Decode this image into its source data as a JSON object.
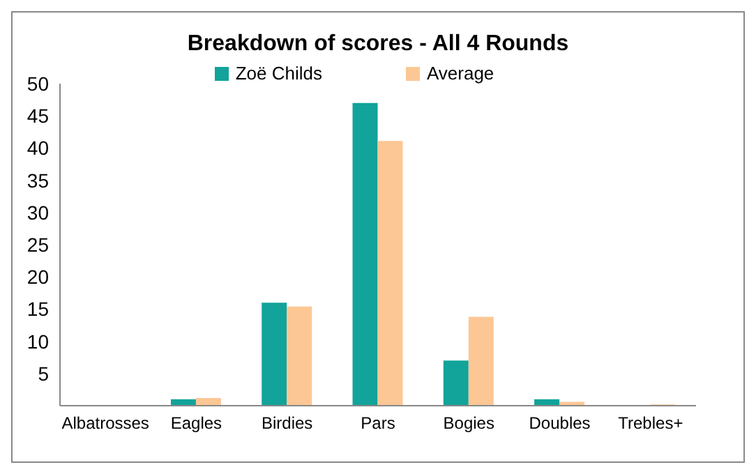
{
  "chart_data": {
    "type": "bar",
    "title": "Breakdown of scores - All 4 Rounds",
    "categories": [
      "Albatrosses",
      "Eagles",
      "Birdies",
      "Pars",
      "Bogies",
      "Doubles",
      "Trebles+"
    ],
    "series": [
      {
        "name": "Zoë Childs",
        "color": "#12a39a",
        "values": [
          0,
          1,
          16,
          47,
          7,
          1,
          0
        ]
      },
      {
        "name": "Average",
        "color": "#fcc795",
        "values": [
          0,
          1.2,
          15.4,
          41.1,
          13.8,
          0.6,
          0.2
        ]
      }
    ],
    "ylim": [
      0,
      50
    ],
    "yticks": [
      5,
      10,
      15,
      20,
      25,
      30,
      35,
      40,
      45,
      50
    ],
    "grid": false,
    "legend": "top"
  }
}
